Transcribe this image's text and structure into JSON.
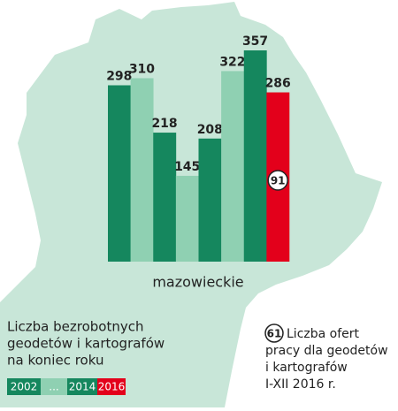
{
  "chart_data": {
    "type": "bar",
    "categories": [
      null,
      null,
      null,
      null,
      null,
      null,
      null,
      null
    ],
    "values": [
      298,
      310,
      218,
      145,
      208,
      322,
      357,
      286
    ],
    "colors": [
      "#15875e",
      "#8fd0b2",
      "#15875e",
      "#8fd0b2",
      "#15875e",
      "#8fd0b2",
      "#15875e",
      "#e3001b"
    ],
    "region": "mazowieckie",
    "annotation": {
      "value": 91,
      "series_index": 7
    },
    "legend": {
      "title_lines": [
        "Liczba bezrobotnych",
        "geodetów i kartografów",
        "na koniec roku"
      ],
      "items": [
        {
          "label": "2002",
          "color": "#15875e"
        },
        {
          "label": "...",
          "color": "#8fd0b2"
        },
        {
          "label": "2014",
          "color": "#15875e"
        },
        {
          "label": "2016",
          "color": "#e3001b"
        }
      ]
    },
    "offers_legend": {
      "value": 61,
      "lines": [
        "Liczba ofert",
        "pracy dla geodetów",
        "i kartografów",
        "I-XII 2016 r."
      ]
    }
  }
}
